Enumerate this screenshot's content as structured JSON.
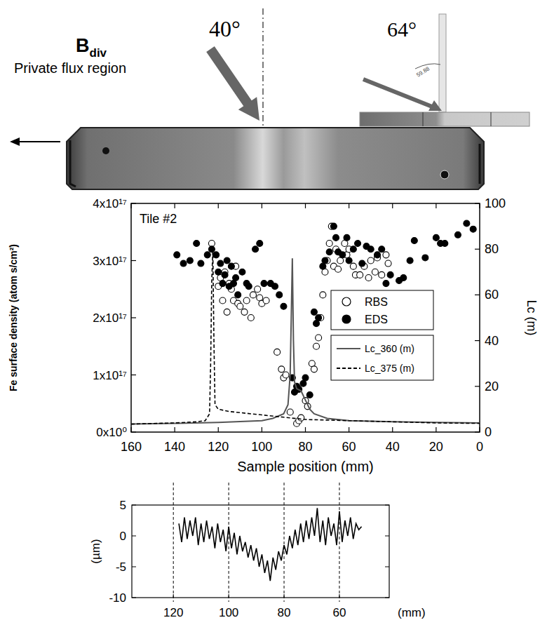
{
  "diagram": {
    "field_label": "B",
    "field_subscript": "div",
    "incidence_angle": "40°",
    "inset_angle": "64°",
    "inset_arc_label": "59.88",
    "region_label": "Private flux region"
  },
  "chart_data": [
    {
      "type": "scatter",
      "annotation": "Tile #2",
      "x_label": "Sample position (mm)",
      "y_label": "Fe surface density (atom s/cm²)",
      "y2_label": "Lc (m)",
      "xlim": [
        160,
        0
      ],
      "xticks": [
        160,
        140,
        120,
        100,
        80,
        60,
        40,
        20,
        0
      ],
      "ylim": [
        0,
        4e+17
      ],
      "yticks": [
        {
          "value": 0,
          "label": "0x10⁰"
        },
        {
          "value": 1e+17,
          "label": "1x10¹⁷"
        },
        {
          "value": 2e+17,
          "label": "2x10¹⁷"
        },
        {
          "value": 3e+17,
          "label": "3x10¹⁷"
        },
        {
          "value": 4e+17,
          "label": "4x10¹⁷"
        }
      ],
      "y2lim": [
        0,
        100
      ],
      "y2ticks": [
        0,
        20,
        40,
        60,
        80,
        100
      ],
      "legend": "right",
      "series": [
        {
          "name": "RBS",
          "type": "scatter",
          "marker": "open-circle",
          "color": "#000000",
          "x": [
            123,
            120,
            119,
            118,
            117,
            116,
            115,
            114,
            113,
            112,
            111,
            110,
            108,
            107,
            105,
            104,
            102,
            101,
            100,
            98,
            93,
            91,
            90,
            89,
            87,
            84,
            83,
            82,
            80,
            79,
            77,
            76,
            75,
            74,
            73,
            72,
            71,
            70,
            69,
            68,
            67,
            66,
            65,
            64,
            62,
            61,
            60,
            58,
            57,
            55,
            53,
            51,
            50,
            48,
            47,
            45,
            43,
            42
          ],
          "values": [
            3.3e+17,
            2.55e+17,
            2.7e+17,
            2.3e+17,
            2.8e+17,
            2.1e+17,
            2.6e+17,
            2.5e+17,
            2.3e+17,
            2.9e+17,
            2.25e+17,
            2.2e+17,
            2.1e+17,
            2.3e+17,
            2e+17,
            2.4e+17,
            2.5e+17,
            2.35e+17,
            2.25e+17,
            2.3e+17,
            1.4e+17,
            1.1e+17,
            9.5e+16,
            1e+17,
            3.5e+16,
            1.5e+16,
            2e+16,
            2.5e+16,
            5.5e+16,
            4.5e+16,
            1.2e+17,
            1.1e+17,
            1.5e+17,
            1.65e+17,
            2e+17,
            2.4e+17,
            2.8e+17,
            3e+17,
            3.3e+17,
            3.6e+17,
            2.9e+17,
            3.2e+17,
            2.85e+17,
            3e+17,
            3.3e+17,
            3.1e+17,
            3.2e+17,
            2.9e+17,
            2.75e+17,
            2.75e+17,
            2.9e+17,
            2.7e+17,
            3e+17,
            2.8e+17,
            3.05e+17,
            2.75e+17,
            3.1e+17,
            2.95e+17
          ]
        },
        {
          "name": "EDS",
          "type": "scatter",
          "marker": "filled-circle",
          "color": "#000000",
          "x": [
            139,
            136,
            133,
            130,
            128,
            125,
            123,
            121,
            120,
            119,
            118,
            117,
            116,
            115,
            114,
            113,
            112,
            111,
            109,
            107,
            106,
            103,
            101,
            99,
            96,
            94,
            92,
            90,
            86,
            85,
            84,
            83,
            81,
            80,
            78,
            76,
            75,
            74,
            72,
            71,
            69,
            67,
            66,
            65,
            63,
            61,
            60,
            58,
            56,
            54,
            52,
            50,
            47,
            45,
            43,
            41,
            37,
            35,
            32,
            30,
            25,
            20,
            18,
            16,
            10,
            6,
            3
          ],
          "values": [
            3.1e+17,
            2.95e+17,
            3e+17,
            3.3e+17,
            2.95e+17,
            3.1e+17,
            3.2e+17,
            3.1e+17,
            2.8e+17,
            2.95e+17,
            2.6e+17,
            2.75e+17,
            3e+17,
            2.55e+17,
            2.9e+17,
            2.6e+17,
            2.7e+17,
            2.4e+17,
            2.8e+17,
            2.6e+17,
            2.55e+17,
            3.2e+17,
            3.3e+17,
            2.6e+17,
            2.6e+17,
            2.55e+17,
            2.4e+17,
            2.2e+17,
            9.5e+16,
            7e+16,
            8e+16,
            7.5e+16,
            8.5e+16,
            9.5e+16,
            6.5e+16,
            2.1e+17,
            1.9e+17,
            2e+17,
            2.9e+17,
            3e+17,
            3.15e+17,
            3.6e+17,
            3.4e+17,
            3.15e+17,
            3.1e+17,
            3.4e+17,
            3e+17,
            3.2e+17,
            3.3e+17,
            2.95e+17,
            3.25e+17,
            3.2e+17,
            3.1e+17,
            3.2e+17,
            2.6e+17,
            2.75e+17,
            2.65e+17,
            2.7e+17,
            3e+17,
            3.35e+17,
            3.05e+17,
            3.4e+17,
            3.3e+17,
            3.3e+17,
            3.45e+17,
            3.65e+17,
            3.55e+17
          ]
        },
        {
          "name": "Lc_360 (m)",
          "type": "line",
          "line_style": "solid",
          "color": "#555555",
          "axis": "y2",
          "x": [
            160,
            140,
            120,
            100,
            95,
            90,
            88,
            87,
            86.5,
            86,
            85.5,
            85,
            84,
            82,
            80,
            78,
            76,
            70,
            60,
            40,
            20,
            0
          ],
          "values": [
            3.5,
            3.8,
            4.2,
            5,
            6,
            8,
            12,
            25,
            50,
            76,
            40,
            22,
            19,
            18,
            14,
            10,
            8,
            6,
            5,
            4.5,
            4.2,
            4
          ]
        },
        {
          "name": "Lc_375 (m)",
          "type": "line",
          "line_style": "dashed",
          "color": "#000000",
          "axis": "y2",
          "x": [
            160,
            140,
            130,
            126,
            124,
            123.5,
            123,
            122.5,
            122,
            121.5,
            120,
            115,
            110,
            100,
            90,
            80,
            60,
            40,
            20,
            0
          ],
          "values": [
            3.5,
            4,
            4.5,
            5,
            8,
            30,
            66,
            80,
            40,
            12,
            10,
            9,
            8.5,
            7.5,
            6.5,
            5.5,
            5,
            4.5,
            4,
            3.8
          ]
        }
      ]
    },
    {
      "type": "line",
      "x_label": "(mm)",
      "y_label": "(µm)",
      "color": "#000000",
      "grid": true,
      "xlim": [
        135,
        42
      ],
      "xticks": [
        120,
        100,
        80,
        60
      ],
      "ylim": [
        -10,
        5
      ],
      "yticks": [
        -10,
        -5,
        0,
        5
      ],
      "x": [
        118,
        117,
        116,
        115,
        114,
        113,
        112,
        111,
        110,
        109,
        108,
        107,
        106,
        105,
        104,
        103,
        102,
        101,
        100,
        99,
        98,
        97,
        96,
        95,
        94,
        93,
        92,
        91,
        90,
        89,
        88,
        87,
        86,
        85,
        84,
        83,
        82,
        81,
        80,
        79,
        78,
        77,
        76,
        75,
        74,
        73,
        72,
        71,
        70,
        69,
        68,
        67,
        66,
        65,
        64,
        63,
        62,
        61,
        60,
        59,
        58,
        57,
        56,
        55,
        54,
        53,
        52
      ],
      "values": [
        2,
        -1,
        3,
        -0.5,
        2.5,
        0,
        3,
        -1.5,
        2,
        -1,
        2.5,
        -0.5,
        1.5,
        -2,
        2,
        -1,
        1,
        -2.5,
        1.5,
        -2,
        0.5,
        -3,
        0,
        -2.5,
        -1,
        -3.5,
        -1.5,
        -4,
        -2,
        -5,
        -3,
        -6,
        -4,
        -7.3,
        -3.5,
        -5.5,
        -2.5,
        -4,
        -1.5,
        -3,
        0,
        -2,
        1,
        -1.5,
        2,
        -1,
        2.5,
        -0.5,
        3,
        0,
        4.5,
        -1,
        2.5,
        -1.5,
        3,
        0,
        2,
        -1.5,
        4,
        -1,
        2.5,
        0,
        3,
        -0.5,
        2,
        1,
        1.5
      ]
    }
  ]
}
